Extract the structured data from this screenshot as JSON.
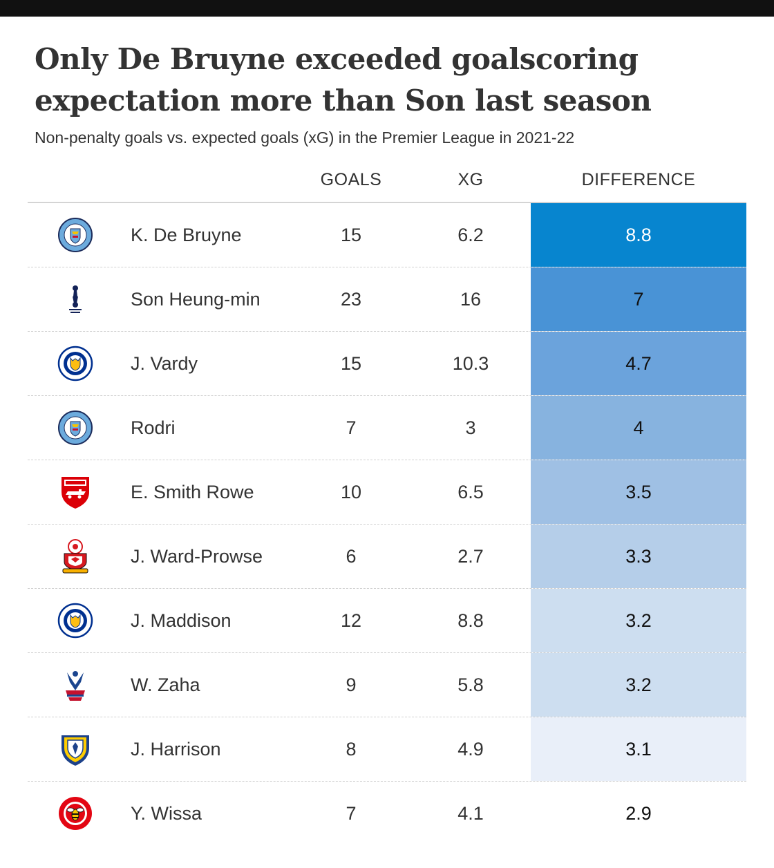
{
  "title": "Only De Bruyne exceeded goalscoring expectation more than Son last season",
  "subtitle": "Non-penalty goals vs. expected goals (xG) in the Premier League in 2021-22",
  "headers": {
    "player": "",
    "goals": "GOALS",
    "xg": "XG",
    "difference": "DIFFERENCE"
  },
  "colors": {
    "scale_max": "#0785cf",
    "scale_min": "#e9eff9",
    "text_dark": "#333333",
    "text_light": "#ffffff"
  },
  "rows": [
    {
      "crest": "manchester-city-crest",
      "player": "K. De Bruyne",
      "goals": "15",
      "xg": "6.2",
      "difference": "8.8",
      "cell_color": "#0785cf",
      "text_color": "#ffffff"
    },
    {
      "crest": "tottenham-crest",
      "player": "Son Heung-min",
      "goals": "23",
      "xg": "16",
      "difference": "7",
      "cell_color": "#4993d6",
      "text_color": "#111111"
    },
    {
      "crest": "leicester-city-crest",
      "player": "J. Vardy",
      "goals": "15",
      "xg": "10.3",
      "difference": "4.7",
      "cell_color": "#6ba3dc",
      "text_color": "#111111"
    },
    {
      "crest": "manchester-city-crest",
      "player": "Rodri",
      "goals": "7",
      "xg": "3",
      "difference": "4",
      "cell_color": "#87b3df",
      "text_color": "#111111"
    },
    {
      "crest": "arsenal-crest",
      "player": "E. Smith Rowe",
      "goals": "10",
      "xg": "6.5",
      "difference": "3.5",
      "cell_color": "#9fc0e4",
      "text_color": "#111111"
    },
    {
      "crest": "southampton-crest",
      "player": "J. Ward-Prowse",
      "goals": "6",
      "xg": "2.7",
      "difference": "3.3",
      "cell_color": "#b5cee9",
      "text_color": "#111111"
    },
    {
      "crest": "leicester-city-crest",
      "player": "J. Maddison",
      "goals": "12",
      "xg": "8.8",
      "difference": "3.2",
      "cell_color": "#cddef0",
      "text_color": "#111111"
    },
    {
      "crest": "crystal-palace-crest",
      "player": "W. Zaha",
      "goals": "9",
      "xg": "5.8",
      "difference": "3.2",
      "cell_color": "#cddef0",
      "text_color": "#111111"
    },
    {
      "crest": "leeds-united-crest",
      "player": "J. Harrison",
      "goals": "8",
      "xg": "4.9",
      "difference": "3.1",
      "cell_color": "#e9eff9",
      "text_color": "#111111"
    },
    {
      "crest": "brentford-crest",
      "player": "Y. Wissa",
      "goals": "7",
      "xg": "4.1",
      "difference": "2.9",
      "cell_color": "#ffffff",
      "text_color": "#111111"
    }
  ],
  "chart_data": {
    "type": "table",
    "title": "Only De Bruyne exceeded goalscoring expectation more than Son last season",
    "subtitle": "Non-penalty goals vs. expected goals (xG) in the Premier League in 2021-22",
    "columns": [
      "GOALS",
      "XG",
      "DIFFERENCE"
    ],
    "categories": [
      "K. De Bruyne",
      "Son Heung-min",
      "J. Vardy",
      "Rodri",
      "E. Smith Rowe",
      "J. Ward-Prowse",
      "J. Maddison",
      "W. Zaha",
      "J. Harrison",
      "Y. Wissa"
    ],
    "series": [
      {
        "name": "GOALS",
        "values": [
          15,
          23,
          15,
          7,
          10,
          6,
          12,
          9,
          8,
          7
        ]
      },
      {
        "name": "XG",
        "values": [
          6.2,
          16,
          10.3,
          3,
          6.5,
          2.7,
          8.8,
          5.8,
          4.9,
          4.1
        ]
      },
      {
        "name": "DIFFERENCE",
        "values": [
          8.8,
          7,
          4.7,
          4,
          3.5,
          3.3,
          3.2,
          3.2,
          3.1,
          2.9
        ]
      }
    ]
  }
}
